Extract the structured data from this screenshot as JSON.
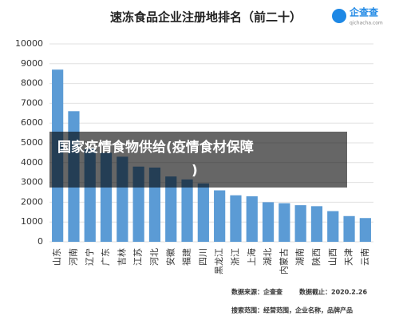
{
  "chart_data": {
    "type": "bar",
    "title": "速冻食品企业注册地排名（前二十）",
    "logo": {
      "name": "企查查",
      "url": "qichacha.com"
    },
    "categories": [
      "山东",
      "河南",
      "辽宁",
      "广东",
      "吉林",
      "江苏",
      "河北",
      "安徽",
      "福建",
      "四川",
      "黑龙江",
      "浙江",
      "上海",
      "湖北",
      "内蒙古",
      "湖南",
      "陕西",
      "山西",
      "天津",
      "云南"
    ],
    "values": [
      8700,
      6600,
      4700,
      4500,
      4300,
      3800,
      3750,
      3300,
      3150,
      2950,
      2600,
      2350,
      2300,
      2000,
      1950,
      1850,
      1800,
      1550,
      1300,
      1200
    ],
    "color": "#5b9bd5",
    "ylim": [
      0,
      10000
    ],
    "yticks": [
      0,
      1000,
      2000,
      3000,
      4000,
      5000,
      6000,
      7000,
      8000,
      9000,
      10000
    ],
    "grid": true,
    "notes": [
      "数据来源：企查查",
      "数据截止：2020.2.26",
      "搜索范围：经营范围，企业名称，品牌产品"
    ],
    "overlay_text": [
      "国家疫情食物供给(疫情食材保障",
      ")"
    ]
  }
}
